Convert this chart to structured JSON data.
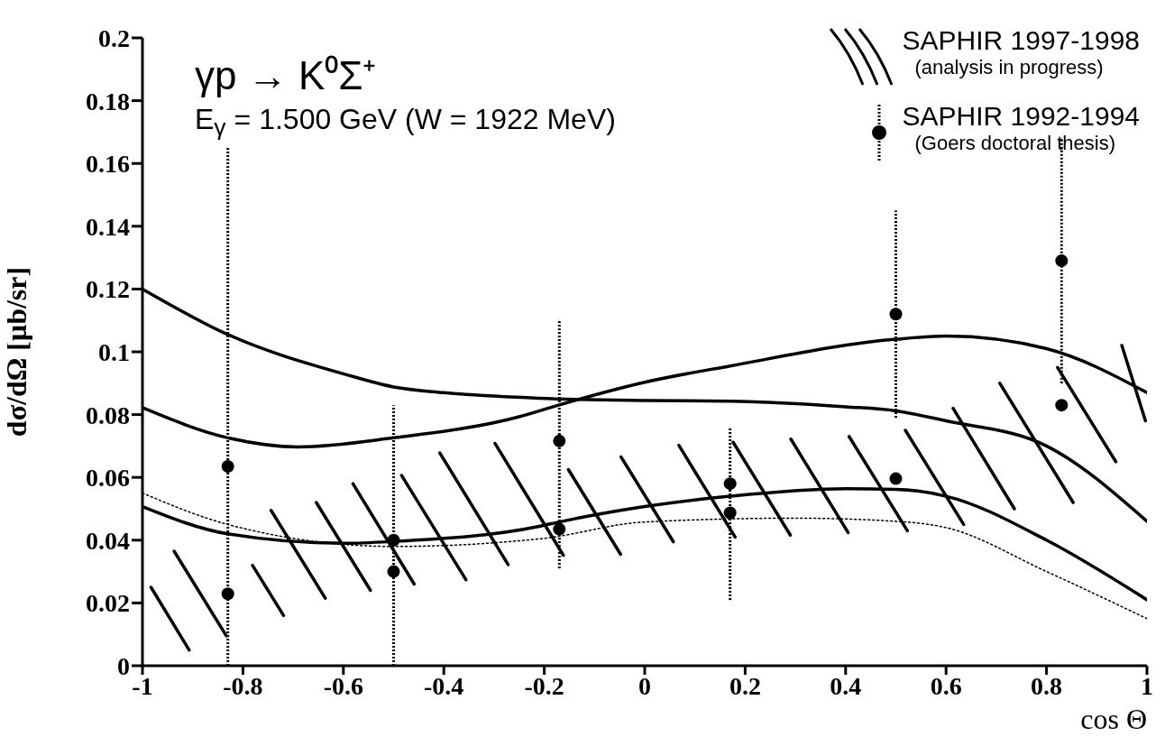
{
  "chart_data": {
    "type": "line",
    "title": "γp → K⁰Σ⁺",
    "subtitle": "E$_{γ}$ = 1.500 GeV (W = 1922 MeV)",
    "xlabel": "cos Θ",
    "ylabel": "dσ/dΩ [μb/sr]",
    "annotations": [
      "(analysis in progress)",
      "(Goers doctoral thesis)"
    ],
    "xlim": [
      -1,
      1
    ],
    "xticks": [
      -1,
      -0.8,
      -0.6,
      -0.4,
      -0.2,
      0,
      0.2,
      0.4,
      0.6,
      0.8,
      1
    ],
    "ylim": [
      0,
      0.2
    ],
    "yticks": [
      0,
      0.02,
      0.04,
      0.06,
      0.08,
      0.1,
      0.12,
      0.14,
      0.16,
      0.18,
      0.2
    ],
    "legend": "top right",
    "series": [
      {
        "name": "SAPHIR 1997-1998",
        "color": "#000000",
        "x": [
          -0.983,
          -0.907
        ],
        "values": [
          0.025,
          0.005
        ]
      },
      {
        "color": "#000000",
        "x": [
          -0.937,
          -0.833
        ],
        "values": [
          0.0365,
          0.0095
        ]
      },
      {
        "color": "#000000",
        "x": [
          -0.781,
          -0.719
        ],
        "values": [
          0.032,
          0.016
        ]
      },
      {
        "color": "#000000",
        "x": [
          -0.744,
          -0.636
        ],
        "values": [
          0.0495,
          0.0215
        ]
      },
      {
        "color": "#000000",
        "x": [
          -0.654,
          -0.546
        ],
        "values": [
          0.052,
          0.024
        ]
      },
      {
        "color": "#000000",
        "x": [
          -0.581,
          -0.459
        ],
        "values": [
          0.058,
          0.026
        ]
      },
      {
        "color": "#000000",
        "x": [
          -0.484,
          -0.356
        ],
        "values": [
          0.0606,
          0.0274
        ]
      },
      {
        "color": "#000000",
        "x": [
          -0.408,
          -0.272
        ],
        "values": [
          0.0678,
          0.0322
        ]
      },
      {
        "color": "#000000",
        "x": [
          -0.298,
          -0.162
        ],
        "values": [
          0.0708,
          0.0352
        ]
      },
      {
        "color": "#000000",
        "x": [
          -0.152,
          -0.048
        ],
        "values": [
          0.0625,
          0.0355
        ]
      },
      {
        "color": "#000000",
        "x": [
          -0.047,
          0.057
        ],
        "values": [
          0.0665,
          0.0395
        ]
      },
      {
        "color": "#000000",
        "x": [
          0.068,
          0.18
        ],
        "values": [
          0.0702,
          0.041
        ]
      },
      {
        "color": "#000000",
        "x": [
          0.176,
          0.29
        ],
        "values": [
          0.0712,
          0.0416
        ]
      },
      {
        "color": "#000000",
        "x": [
          0.291,
          0.405
        ],
        "values": [
          0.0722,
          0.0424
        ]
      },
      {
        "color": "#000000",
        "x": [
          0.407,
          0.523
        ],
        "values": [
          0.073,
          0.043
        ]
      },
      {
        "color": "#000000",
        "x": [
          0.519,
          0.635
        ],
        "values": [
          0.075,
          0.045
        ]
      },
      {
        "color": "#000000",
        "x": [
          0.614,
          0.736
        ],
        "values": [
          0.082,
          0.05
        ]
      },
      {
        "color": "#000000",
        "x": [
          0.707,
          0.853
        ],
        "values": [
          0.09,
          0.052
        ]
      },
      {
        "color": "#000000",
        "x": [
          0.822,
          0.938
        ],
        "values": [
          0.095,
          0.065
        ]
      },
      {
        "color": "#000000",
        "x": [
          0.95,
          0.997
        ],
        "values": [
          0.102,
          0.078
        ]
      },
      {
        "name": "SAPHIR 1992-1994",
        "type": "scatter",
        "marker": "circle",
        "color": "#000000",
        "x": [
          -0.83,
          -0.5,
          -0.17,
          0.17,
          0.5,
          0.83
        ],
        "values": [
          0.0635,
          0.04,
          0.0716,
          0.0487,
          0.112,
          0.129
        ],
        "errors": [
          [
            0,
            0.165
          ],
          [
            0,
            0.083
          ],
          [
            0.031,
            0.11
          ],
          [
            0.021,
            0.076
          ],
          [
            0.079,
            0.145
          ],
          [
            0.09,
            0.168
          ]
        ]
      },
      {
        "type": "scatter",
        "marker": "circle",
        "color": "#000000",
        "x": [
          -0.83,
          -0.5,
          -0.17,
          0.17,
          0.5,
          0.83
        ],
        "values": [
          0.0229,
          0.03,
          0.0435,
          0.058,
          0.0596,
          0.083
        ]
      },
      {
        "line_style": "solid",
        "color": "#000000",
        "x": [
          -1,
          -0.83,
          -0.6,
          -0.5,
          -0.4,
          -0.21,
          0,
          0.17,
          0.4,
          0.5,
          0.6,
          0.8,
          1
        ],
        "values": [
          0.12,
          0.1055,
          0.093,
          0.0888,
          0.087,
          0.0852,
          0.0845,
          0.0843,
          0.0825,
          0.0812,
          0.078,
          0.07,
          0.046
        ]
      },
      {
        "line_style": "solid",
        "color": "#000000",
        "x": [
          -1,
          -0.83,
          -0.69,
          -0.5,
          -0.25,
          -0.17,
          0,
          0.17,
          0.5,
          0.6,
          0.8,
          1
        ],
        "values": [
          0.0822,
          0.0726,
          0.0697,
          0.0726,
          0.0793,
          0.0831,
          0.0903,
          0.0955,
          0.104,
          0.105,
          0.101,
          0.087
        ]
      },
      {
        "line_style": "solid",
        "color": "#000000",
        "x": [
          -1,
          -0.83,
          -0.6,
          -0.5,
          -0.21,
          -0.17,
          0,
          0.17,
          0.4,
          0.5,
          0.6,
          0.8,
          1
        ],
        "values": [
          0.0507,
          0.042,
          0.039,
          0.0396,
          0.0444,
          0.0458,
          0.0507,
          0.054,
          0.0564,
          0.0562,
          0.054,
          0.04,
          0.021
        ]
      },
      {
        "line_style": "dotted",
        "color": "#000000",
        "x": [
          -1,
          -0.83,
          -0.5,
          -0.2,
          0,
          0.3,
          0.5,
          0.6,
          0.8,
          1
        ],
        "values": [
          0.055,
          0.045,
          0.038,
          0.0406,
          0.0458,
          0.047,
          0.046,
          0.044,
          0.03,
          0.015
        ]
      }
    ]
  }
}
